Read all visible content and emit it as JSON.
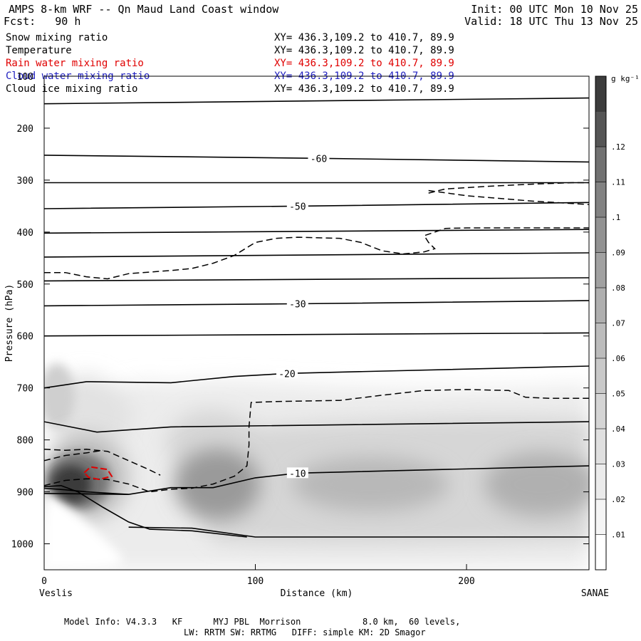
{
  "header": {
    "title": "AMPS 8-km WRF -- Qn Maud Land Coast window",
    "forecast": "Fcst:   90 h",
    "init": "Init: 00 UTC Mon 10 Nov 25",
    "valid": "Valid: 18 UTC Thu 13 Nov 25"
  },
  "legend": [
    {
      "name": "Snow mixing ratio",
      "xy": "XY= 436.3,109.2 to 410.7, 89.9",
      "color": "#000000"
    },
    {
      "name": "Temperature",
      "xy": "XY= 436.3,109.2 to 410.7, 89.9",
      "color": "#000000"
    },
    {
      "name": "Rain water mixing ratio",
      "xy": "XY= 436.3,109.2 to 410.7, 89.9",
      "color": "#e00000"
    },
    {
      "name": "Cloud water mixing ratio",
      "xy": "XY= 436.3,109.2 to 410.7, 89.9",
      "color": "#2020c0"
    },
    {
      "name": "Cloud ice mixing ratio",
      "xy": "XY= 436.3,109.2 to 410.7, 89.9",
      "color": "#000000"
    }
  ],
  "footer": {
    "line1": "Model Info: V4.3.3   KF      MYJ PBL  Morrison            8.0 km,  60 levels,",
    "line2": "LW: RRTM SW: RRTMG   DIFF: simple KM: 2D Smagor"
  },
  "chart_data": {
    "type": "cross-section",
    "xlabel": "Distance (km)",
    "ylabel": "Pressure (hPa)",
    "xlim": [
      0,
      258
    ],
    "ylim": [
      1050,
      100
    ],
    "x_ticks": [
      0,
      100,
      200
    ],
    "y_ticks": [
      100,
      200,
      300,
      400,
      500,
      600,
      700,
      800,
      900,
      1000
    ],
    "left_endpoint": "Veslis",
    "right_endpoint": "SANAE",
    "colorbar": {
      "units": "g kg⁻¹",
      "levels": [
        ".01",
        ".02",
        ".03",
        ".04",
        ".05",
        ".06",
        ".07",
        ".08",
        ".09",
        ".1",
        ".11",
        ".12"
      ],
      "shades": [
        "#ffffff",
        "#f5f5f5",
        "#ebebeb",
        "#e0e0e0",
        "#d5d5d5",
        "#c9c9c9",
        "#bcbcbc",
        "#afafaf",
        "#a1a1a1",
        "#929292",
        "#828282",
        "#717171",
        "#555555",
        "#3c3c3c"
      ]
    },
    "temperature_isotherms": [
      {
        "label": "-60",
        "label_x": 130,
        "points": [
          [
            0,
            252
          ],
          [
            130,
            258
          ],
          [
            258,
            265
          ]
        ]
      },
      {
        "label": "-50",
        "label_x": 120,
        "points": [
          [
            0,
            355
          ],
          [
            120,
            350
          ],
          [
            258,
            343
          ]
        ]
      },
      {
        "label": "-30",
        "label_x": 120,
        "points": [
          [
            0,
            542
          ],
          [
            120,
            538
          ],
          [
            258,
            532
          ]
        ]
      },
      {
        "label": "-20",
        "label_x": 115,
        "points": [
          [
            0,
            700
          ],
          [
            20,
            688
          ],
          [
            60,
            690
          ],
          [
            90,
            678
          ],
          [
            115,
            672
          ],
          [
            258,
            658
          ]
        ]
      },
      {
        "label": "-10",
        "label_x": 120,
        "points": [
          [
            0,
            903
          ],
          [
            40,
            905
          ],
          [
            60,
            892
          ],
          [
            80,
            892
          ],
          [
            100,
            873
          ],
          [
            120,
            864
          ],
          [
            258,
            850
          ]
        ]
      }
    ],
    "unlabeled_isotherms": [
      [
        [
          0,
          153
        ],
        [
          258,
          142
        ]
      ],
      [
        [
          0,
          305
        ],
        [
          258,
          305
        ]
      ],
      [
        [
          0,
          402
        ],
        [
          258,
          395
        ]
      ],
      [
        [
          0,
          448
        ],
        [
          258,
          440
        ]
      ],
      [
        [
          0,
          494
        ],
        [
          258,
          488
        ]
      ],
      [
        [
          0,
          600
        ],
        [
          258,
          594
        ]
      ],
      [
        [
          0,
          765
        ],
        [
          25,
          785
        ],
        [
          60,
          775
        ],
        [
          258,
          765
        ]
      ],
      [
        [
          0,
          893
        ],
        [
          10,
          896
        ],
        [
          20,
          900
        ],
        [
          40,
          905
        ]
      ]
    ],
    "terrain_lines": [
      [
        [
          0,
          890
        ],
        [
          8,
          888
        ],
        [
          16,
          900
        ],
        [
          28,
          930
        ],
        [
          40,
          958
        ],
        [
          50,
          972
        ],
        [
          70,
          975
        ],
        [
          96,
          987
        ]
      ],
      [
        [
          40,
          968
        ],
        [
          70,
          970
        ],
        [
          100,
          987
        ],
        [
          258,
          987
        ]
      ]
    ],
    "snow_contour_dashed": [
      [
        [
          0,
          478
        ],
        [
          10,
          478
        ],
        [
          20,
          486
        ],
        [
          30,
          490
        ],
        [
          40,
          480
        ],
        [
          60,
          474
        ],
        [
          70,
          470
        ],
        [
          80,
          460
        ],
        [
          90,
          445
        ],
        [
          100,
          420
        ],
        [
          110,
          412
        ],
        [
          120,
          410
        ],
        [
          140,
          412
        ],
        [
          150,
          420
        ],
        [
          160,
          436
        ],
        [
          170,
          442
        ],
        [
          180,
          438
        ],
        [
          185,
          432
        ],
        [
          182,
          420
        ],
        [
          180,
          407
        ],
        [
          190,
          393
        ],
        [
          200,
          392
        ],
        [
          230,
          392
        ],
        [
          258,
          392
        ]
      ],
      [
        [
          182,
          325
        ],
        [
          190,
          317
        ],
        [
          210,
          312
        ],
        [
          230,
          308
        ],
        [
          250,
          305
        ],
        [
          258,
          305
        ]
      ],
      [
        [
          182,
          320
        ],
        [
          200,
          330
        ],
        [
          230,
          340
        ],
        [
          258,
          347
        ]
      ],
      [
        [
          0,
          818
        ],
        [
          10,
          820
        ],
        [
          20,
          818
        ],
        [
          30,
          822
        ],
        [
          40,
          840
        ],
        [
          50,
          858
        ],
        [
          55,
          868
        ]
      ],
      [
        [
          0,
          888
        ],
        [
          10,
          878
        ],
        [
          20,
          875
        ],
        [
          30,
          876
        ],
        [
          40,
          885
        ],
        [
          50,
          900
        ],
        [
          60,
          895
        ],
        [
          70,
          893
        ],
        [
          80,
          885
        ],
        [
          90,
          870
        ],
        [
          96,
          850
        ],
        [
          97,
          810
        ],
        [
          97,
          775
        ],
        [
          98,
          728
        ],
        [
          110,
          726
        ],
        [
          140,
          724
        ],
        [
          160,
          714
        ],
        [
          180,
          705
        ],
        [
          200,
          703
        ],
        [
          220,
          705
        ],
        [
          228,
          718
        ],
        [
          240,
          720
        ],
        [
          258,
          720
        ]
      ],
      [
        [
          0,
          840
        ],
        [
          10,
          830
        ],
        [
          20,
          825
        ],
        [
          28,
          820
        ]
      ]
    ],
    "rain_contour": [
      [
        19,
        863
      ],
      [
        22,
        852
      ],
      [
        30,
        857
      ],
      [
        32,
        870
      ],
      [
        26,
        876
      ],
      [
        21,
        872
      ],
      [
        19,
        863
      ]
    ]
  }
}
